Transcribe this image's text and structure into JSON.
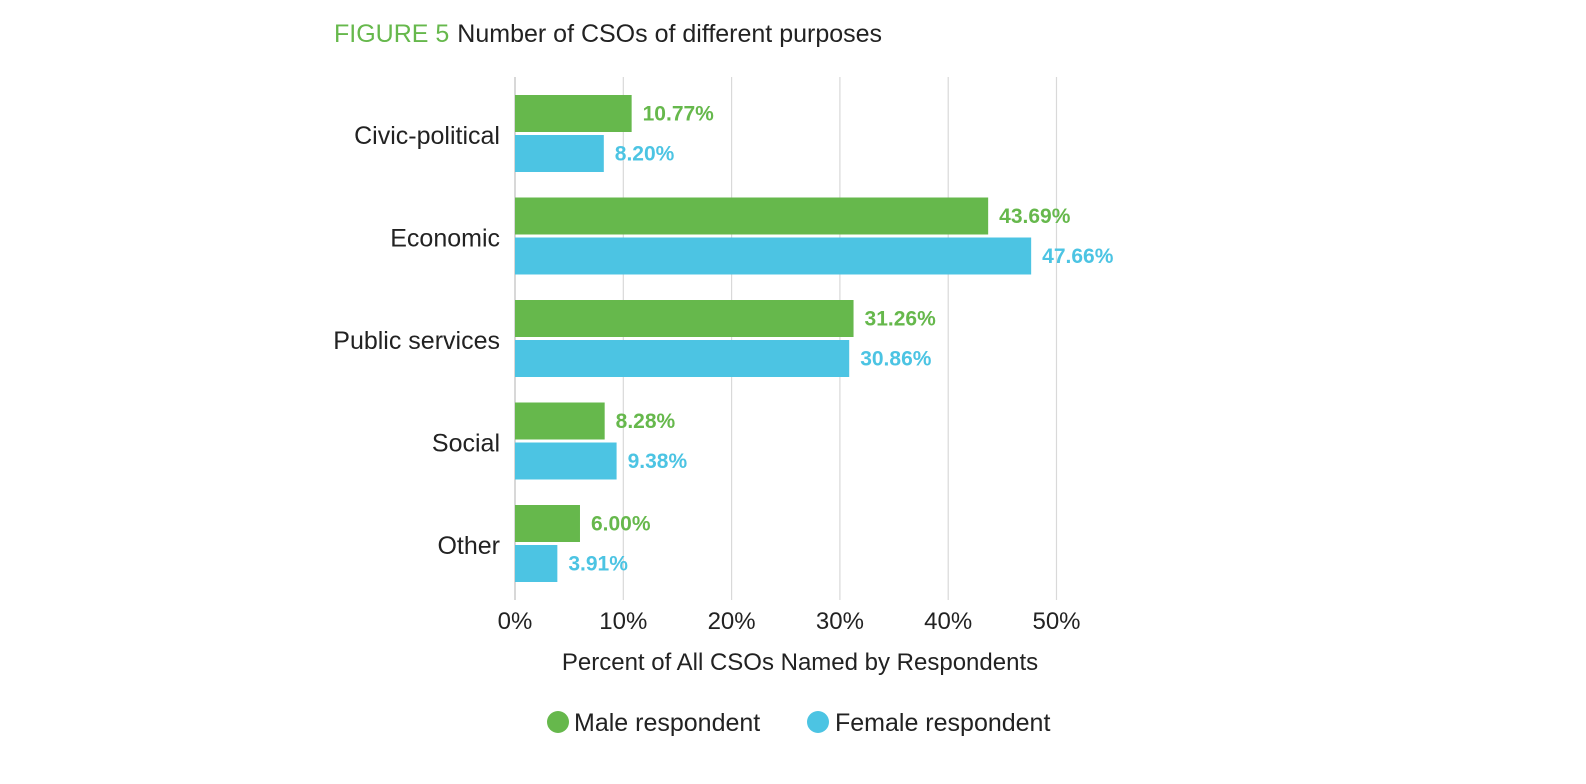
{
  "title": {
    "figure_label": "FIGURE 5",
    "text": "Number of CSOs of different purposes"
  },
  "colors": {
    "male": "#66b84c",
    "female": "#4cc4e3",
    "grid": "#d9d9d9",
    "axis": "#bfbfbf"
  },
  "chart_data": {
    "type": "bar",
    "orientation": "horizontal",
    "title": "Number of CSOs of different purposes",
    "categories": [
      "Civic-political",
      "Economic",
      "Public services",
      "Social",
      "Other"
    ],
    "series": [
      {
        "name": "Male respondent",
        "color": "#66b84c",
        "values": [
          10.77,
          43.69,
          31.26,
          8.28,
          6.0
        ],
        "labels": [
          "10.77%",
          "43.69%",
          "31.26%",
          "8.28%",
          "6.00%"
        ]
      },
      {
        "name": "Female respondent",
        "color": "#4cc4e3",
        "values": [
          8.2,
          47.66,
          30.86,
          9.38,
          3.91
        ],
        "labels": [
          "8.20%",
          "47.66%",
          "30.86%",
          "9.38%",
          "3.91%"
        ]
      }
    ],
    "xlabel": "Percent of All CSOs Named by Respondents",
    "ylabel": "",
    "xlim": [
      0,
      50
    ],
    "xticks": [
      0,
      10,
      20,
      30,
      40,
      50
    ],
    "xtick_labels": [
      "0%",
      "10%",
      "20%",
      "30%",
      "40%",
      "50%"
    ],
    "grid": true,
    "legend_position": "bottom"
  }
}
